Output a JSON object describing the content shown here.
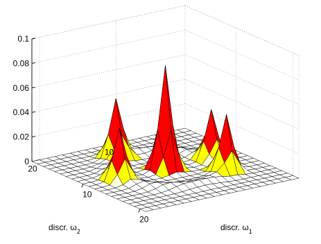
{
  "chart_data": {
    "type": "surface",
    "title": "",
    "xlabel": {
      "prefix": "discr. ",
      "symbol": "ω",
      "subscript": "1"
    },
    "ylabel": {
      "prefix": "discr. ",
      "symbol": "ω",
      "subscript": "2"
    },
    "zlabel": "",
    "xlim": [
      1,
      21
    ],
    "ylim": [
      1,
      21
    ],
    "zlim": [
      0,
      0.1
    ],
    "x_ticks": [
      "10",
      "20"
    ],
    "y_ticks": [
      "10",
      "20"
    ],
    "z_ticks": [
      "0",
      "0.02",
      "0.04",
      "0.06",
      "0.08",
      "0.1"
    ],
    "z_tick_values": [
      0,
      0.02,
      0.04,
      0.06,
      0.08,
      0.1
    ],
    "grid": true,
    "grid_size": 21,
    "colormap": {
      "low": "#ffffff",
      "mid": "#ffff00",
      "high": "#ff0000"
    },
    "peaks": [
      {
        "x": 11,
        "y": 11,
        "z": 0.085
      },
      {
        "x": 5,
        "y": 13,
        "z": 0.045
      },
      {
        "x": 15,
        "y": 6,
        "z": 0.043
      },
      {
        "x": 11,
        "y": 17,
        "z": 0.038
      },
      {
        "x": 11,
        "y": 5,
        "z": 0.037
      }
    ],
    "ring": {
      "center_x": 11,
      "center_y": 11,
      "radius": 6,
      "z": 0.004
    }
  }
}
